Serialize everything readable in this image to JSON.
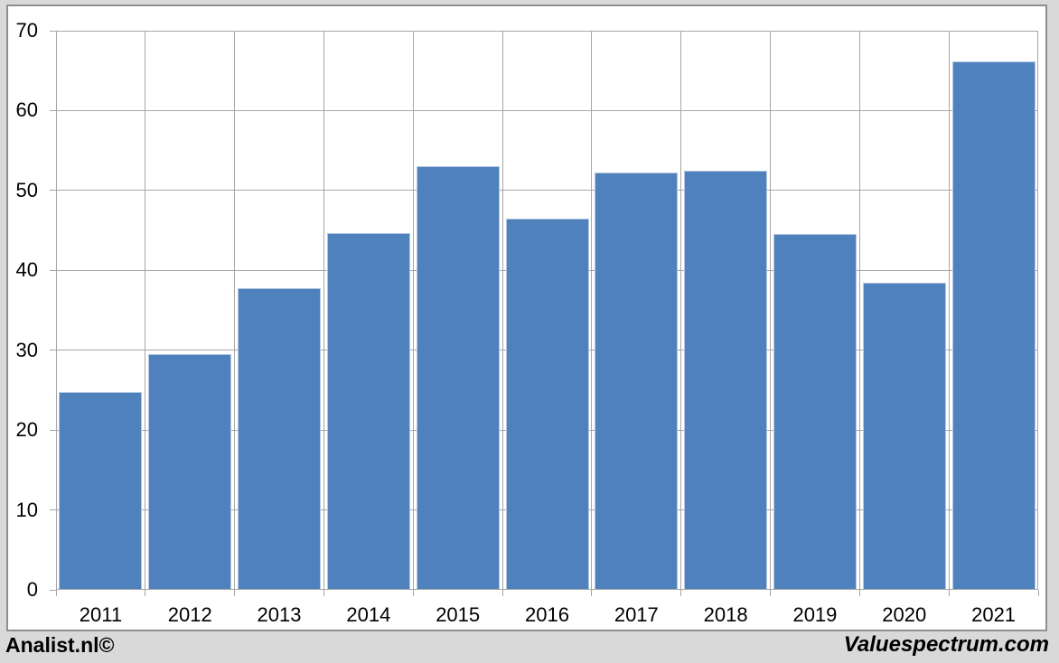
{
  "chart_data": {
    "type": "bar",
    "categories": [
      "2011",
      "2012",
      "2013",
      "2014",
      "2015",
      "2016",
      "2017",
      "2018",
      "2019",
      "2020",
      "2021"
    ],
    "values": [
      24.8,
      29.5,
      37.8,
      44.7,
      53.0,
      46.5,
      52.2,
      52.5,
      44.6,
      38.4,
      66.2
    ],
    "title": "",
    "xlabel": "",
    "ylabel": "",
    "ylim": [
      0,
      70
    ],
    "yticks": [
      0,
      10,
      20,
      30,
      40,
      50,
      60,
      70
    ],
    "grid": "horizontal-and-vertical-major",
    "legend": "none",
    "colors": {
      "bar_fill": "#4f81bd",
      "bar_edge": "#b4c7e2",
      "gridline": "#a6a6a6",
      "plot_background": "#ffffff",
      "outer_background": "#d9d9d9",
      "frame_border": "#8f8f8f",
      "text": "#000000"
    }
  },
  "footer": {
    "left_label": "Analist.nl©",
    "right_label": "Valuespectrum.com"
  }
}
